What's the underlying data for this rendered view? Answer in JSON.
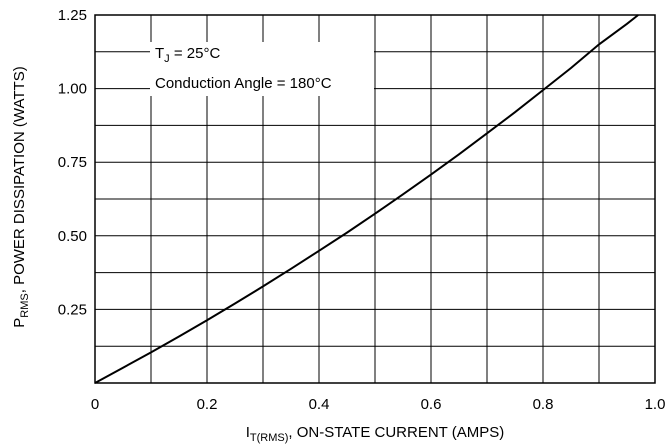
{
  "chart_data": {
    "type": "line",
    "x_ticks": [
      "0",
      "0.2",
      "0.4",
      "0.6",
      "0.8",
      "1.0"
    ],
    "y_ticks": [
      "0.25",
      "0.50",
      "0.75",
      "1.00",
      "1.25"
    ],
    "xlim": [
      0,
      1.0
    ],
    "ylim": [
      0,
      1.25
    ],
    "x_gridlines": [
      0,
      0.1,
      0.2,
      0.3,
      0.4,
      0.5,
      0.6,
      0.7,
      0.8,
      0.9,
      1.0
    ],
    "y_gridlines": [
      0,
      0.125,
      0.25,
      0.375,
      0.5,
      0.625,
      0.75,
      0.875,
      1.0,
      1.125,
      1.25
    ],
    "grid": true,
    "xlabel": {
      "main": "I",
      "sub": "T(RMS)",
      "rest": ", ON-STATE CURRENT (AMPS)"
    },
    "ylabel": {
      "main": "P",
      "sub": "RMS",
      "rest": ", POWER DISSIPATION (WATTS)"
    },
    "annotations": {
      "tj_main": "T",
      "tj_sub": "J",
      "tj_rest": " = 25°C",
      "conduction": "Conduction Angle = 180°C"
    },
    "series": [
      {
        "x": [
          0,
          0.05,
          0.1,
          0.15,
          0.2,
          0.25,
          0.3,
          0.35,
          0.4,
          0.45,
          0.5,
          0.55,
          0.6,
          0.65,
          0.7,
          0.75,
          0.8,
          0.85,
          0.9,
          0.95,
          0.97
        ],
        "y": [
          0,
          0.052,
          0.104,
          0.158,
          0.213,
          0.27,
          0.328,
          0.388,
          0.449,
          0.511,
          0.575,
          0.641,
          0.708,
          0.777,
          0.848,
          0.92,
          0.995,
          1.07,
          1.15,
          1.22,
          1.25
        ]
      }
    ]
  }
}
